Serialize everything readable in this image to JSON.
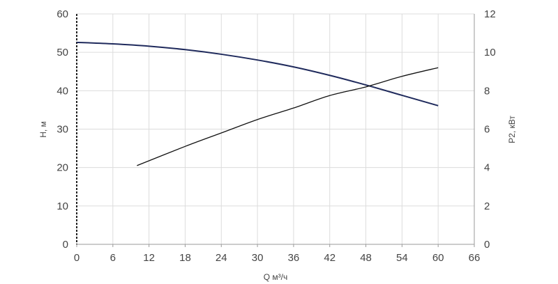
{
  "chart_data": {
    "type": "line",
    "xlabel": "Q м³/ч",
    "ylabel": "H, м",
    "y2label": "P2, кВт",
    "xlim": [
      0,
      66
    ],
    "ylim": [
      0,
      60
    ],
    "y2lim": [
      0,
      12
    ],
    "x_ticks": [
      0,
      6,
      12,
      18,
      24,
      30,
      36,
      42,
      48,
      54,
      60,
      66
    ],
    "y_ticks": [
      0,
      10,
      20,
      30,
      40,
      50,
      60
    ],
    "y2_ticks": [
      0,
      2,
      4,
      6,
      8,
      10,
      12
    ],
    "grid": true,
    "series": [
      {
        "axis": "left",
        "color": "#1f2a5c",
        "x": [
          0,
          6,
          12,
          18,
          24,
          30,
          36,
          42,
          48,
          54,
          60
        ],
        "values": [
          52.6,
          52.2,
          51.6,
          50.7,
          49.5,
          48.0,
          46.2,
          44.0,
          41.5,
          38.8,
          36.1
        ]
      },
      {
        "axis": "right",
        "color": "#111111",
        "x": [
          10,
          18,
          24,
          30,
          36,
          42,
          48,
          54,
          60
        ],
        "values": [
          4.1,
          5.1,
          5.8,
          6.5,
          7.1,
          7.75,
          8.2,
          8.75,
          9.2
        ]
      }
    ]
  }
}
